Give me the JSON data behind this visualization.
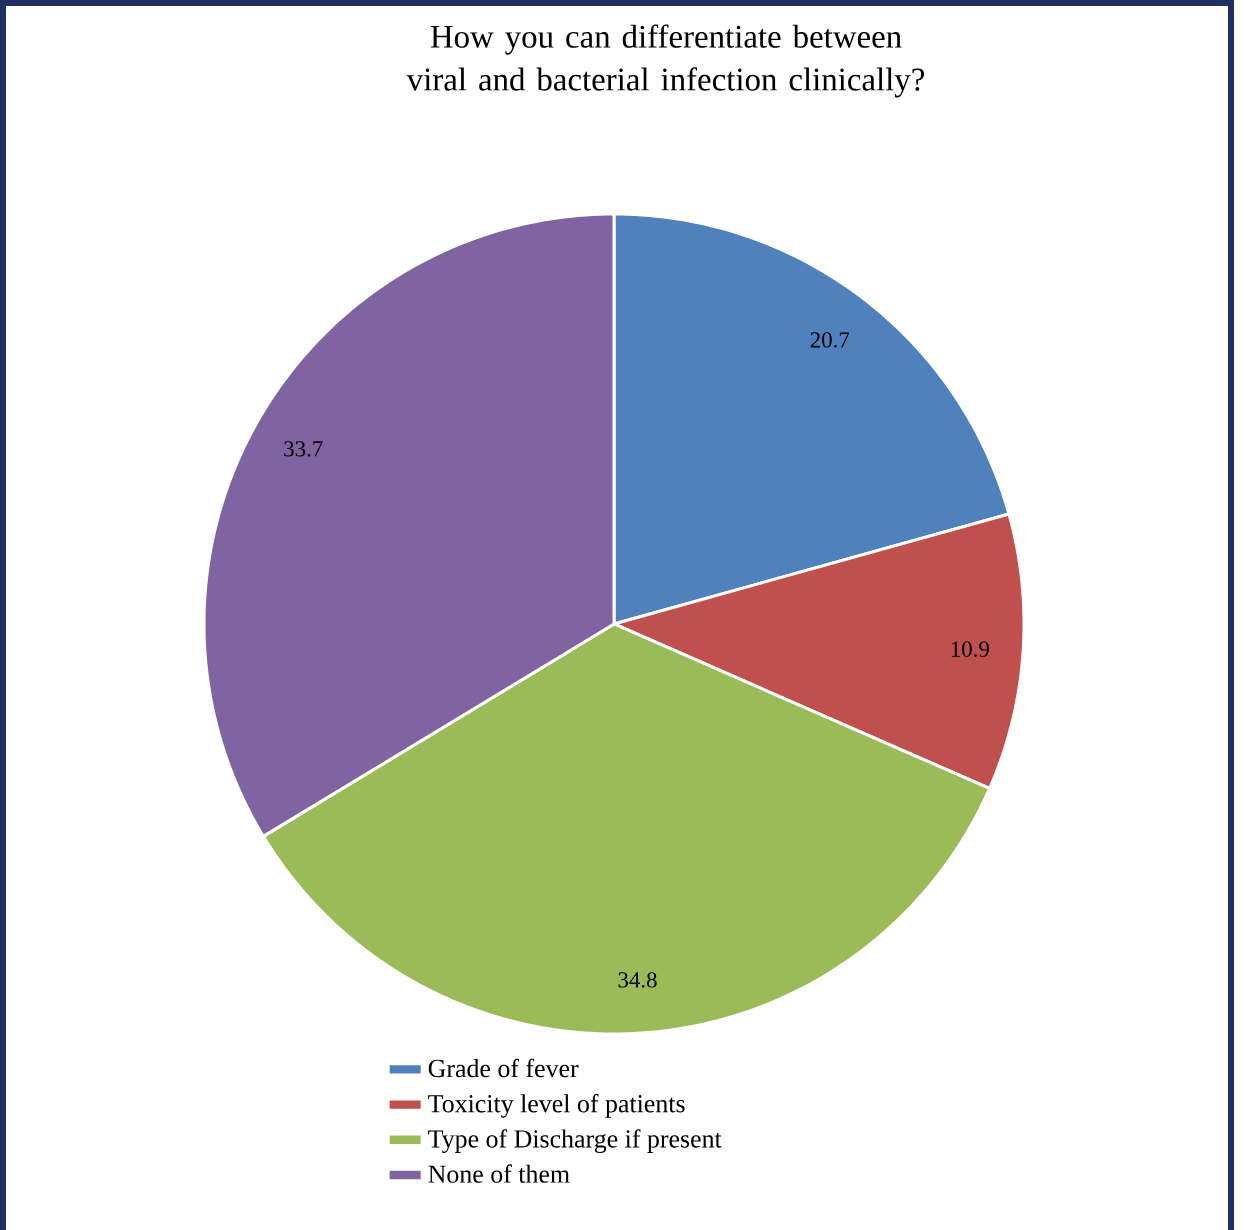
{
  "chart_data": {
    "type": "pie",
    "title": "How you can differentiate between viral and bacterial infection clinically?",
    "categories": [
      "Grade of fever",
      "Toxicity level of patients",
      "Type of Discharge if present",
      "None of them"
    ],
    "values": [
      20.7,
      10.9,
      34.8,
      33.7
    ],
    "colors": [
      "#4f81bd",
      "#c0504d",
      "#9bbb59",
      "#8064a2"
    ],
    "data_labels": true,
    "legend": "bottom"
  }
}
